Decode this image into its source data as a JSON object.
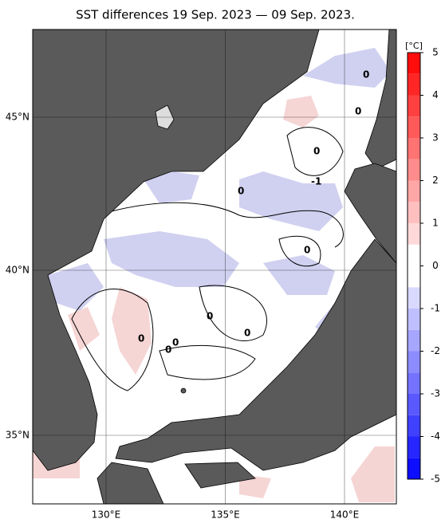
{
  "title": "SST differences 19 Sep. 2023 — 09 Sep. 2023.",
  "map": {
    "lat_ticks": [
      {
        "value": 45,
        "label": "45°N"
      },
      {
        "value": 40,
        "label": "40°N"
      },
      {
        "value": 35,
        "label": "35°N"
      }
    ],
    "lon_ticks": [
      {
        "value": 130,
        "label": "130°E"
      },
      {
        "value": 135,
        "label": "135°E"
      },
      {
        "value": 140,
        "label": "140°E"
      }
    ],
    "contour_labels": [
      "0",
      "0",
      "0",
      "-1",
      "0",
      "0",
      "0",
      "0",
      "0",
      "0",
      "0"
    ]
  },
  "colorbar": {
    "unit": "[°C]",
    "lim": [
      -5,
      5
    ],
    "ticks": [
      5,
      4,
      3,
      2,
      1,
      0,
      -1,
      -2,
      -3,
      -4,
      -5
    ]
  }
}
